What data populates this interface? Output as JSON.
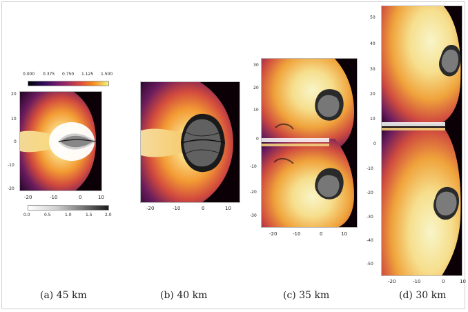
{
  "figure": {
    "colorbar_top": {
      "ticks": [
        "0.000",
        "0.375",
        "0.750",
        "1.125",
        "1.500"
      ]
    },
    "colorbar_bottom": {
      "ticks": [
        "0.0",
        "0.5",
        "1.0",
        "1.5",
        "2.0"
      ]
    },
    "panels": [
      {
        "id": "a",
        "caption": "(a) 45 km",
        "y_ticks": [
          "20",
          "10",
          "0",
          "-10",
          "-20"
        ],
        "x_ticks": [
          "-20",
          "-10",
          "0",
          "10"
        ]
      },
      {
        "id": "b",
        "caption": "(b) 40 km",
        "x_ticks": [
          "-20",
          "-10",
          "0",
          "10"
        ]
      },
      {
        "id": "c",
        "caption": "(c) 35 km",
        "y_ticks": [
          "30",
          "20",
          "10",
          "0",
          "-10",
          "-20",
          "-30"
        ],
        "x_ticks": [
          "-20",
          "-10",
          "0",
          "10"
        ]
      },
      {
        "id": "d",
        "caption": "(d) 30 km",
        "y_ticks": [
          "50",
          "40",
          "30",
          "20",
          "10",
          "0",
          "-10",
          "-20",
          "-30",
          "-40",
          "-50"
        ],
        "x_ticks": [
          "-20",
          "-10",
          "0",
          "10"
        ]
      }
    ]
  }
}
